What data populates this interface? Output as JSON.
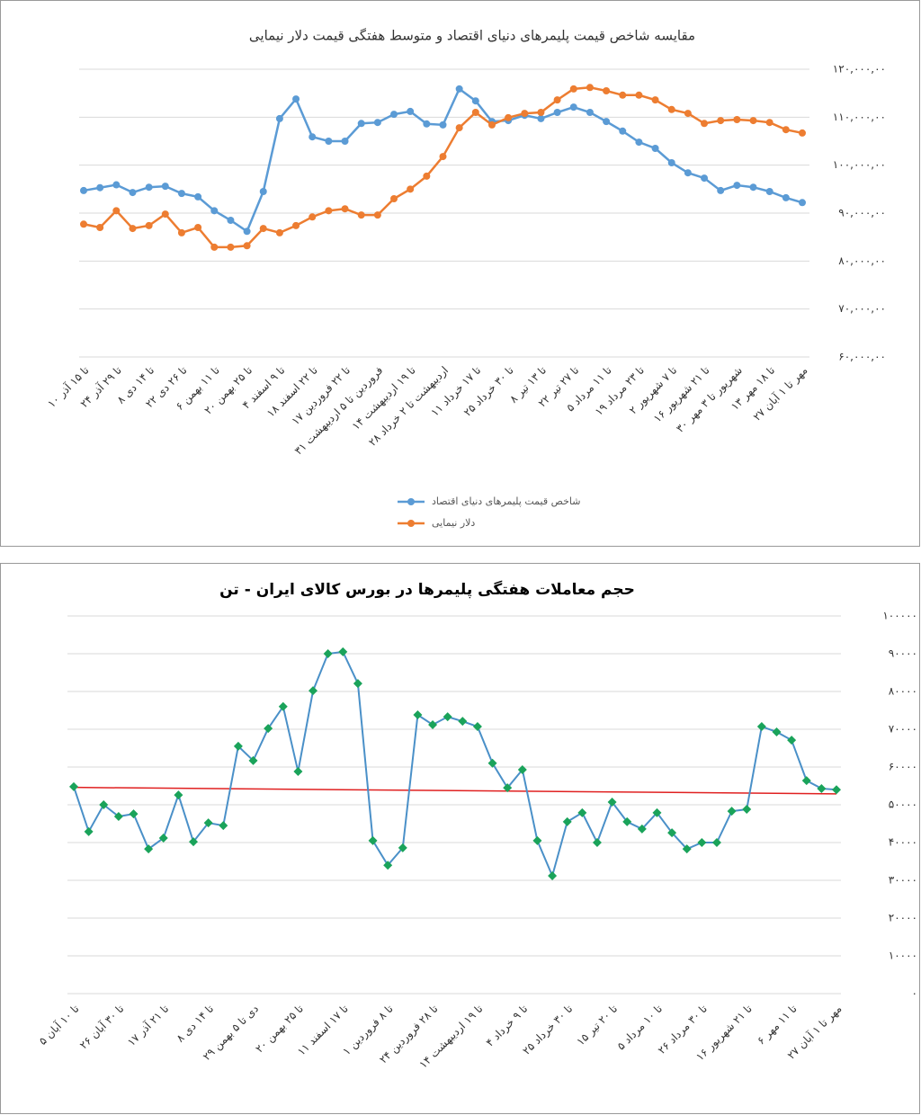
{
  "chart_data": [
    {
      "type": "line",
      "title": "مقایسه شاخص قیمت پلیمرهای دنیای اقتصاد و متوسط هفتگی قیمت دلار نیمایی",
      "categories": [
        "۱۰ تا ۱۵ آذر",
        null,
        "۲۴ تا ۲۹ آذر",
        null,
        "۸ تا ۱۴ دی",
        null,
        "۲۲ تا ۲۶ دی",
        null,
        "۶ تا ۱۱ بهمن",
        null,
        "۲۰ تا ۲۵ بهمن",
        null,
        "۴ تا ۹ اسفند",
        null,
        "۱۸ تا ۲۲ اسفند",
        null,
        "۱۷ تا ۲۲ فروردین",
        null,
        "۳۱ فروردین تا ۵ اردیبهشت",
        null,
        "۱۴ تا ۱۹ اردیبهشت",
        null,
        "۲۸ اردیبهشت تا ۲ خرداد",
        null,
        "۱۱ تا ۱۷ خرداد",
        null,
        "۲۵ تا ۳۰ خرداد",
        null,
        "۸ تا ۱۳ تیر",
        null,
        "۲۲ تا ۲۷ تیر",
        null,
        "۵ تا ۱۱ مرداد",
        null,
        "۱۹ تا ۲۳ مرداد",
        null,
        "۲ تا ۷ شهریور",
        null,
        "۱۶ تا ۲۱ شهریور",
        null,
        "۳۰ شهریور تا ۳ مهر",
        null,
        "۱۳ تا ۱۸ مهر",
        null,
        "۲۷ مهر تا ۱ آبان"
      ],
      "series": [
        {
          "name": "شاخص قیمت پلیمرهای دنیای اقتصاد",
          "color": "#5b9bd5",
          "marker": "circle",
          "values": [
            9470000,
            9530000,
            9590000,
            9430000,
            9540000,
            9560000,
            9410000,
            9340000,
            9050000,
            8850000,
            8620000,
            9450000,
            10970000,
            11380000,
            10590000,
            10500000,
            10500000,
            10870000,
            10890000,
            11060000,
            11120000,
            10860000,
            10840000,
            11590000,
            11340000,
            10910000,
            10930000,
            11040000,
            10970000,
            11100000,
            11210000,
            11100000,
            10910000,
            10710000,
            10480000,
            10350000,
            10050000,
            9840000,
            9730000,
            9470000,
            9580000,
            9540000,
            9450000,
            9320000,
            9220000
          ]
        },
        {
          "name": "دلار نیمایی",
          "color": "#ed7d31",
          "marker": "circle",
          "values": [
            8770000,
            8700000,
            9050000,
            8680000,
            8740000,
            8980000,
            8590000,
            8700000,
            8290000,
            8290000,
            8320000,
            8680000,
            8590000,
            8740000,
            8920000,
            9050000,
            9090000,
            8960000,
            8960000,
            9300000,
            9500000,
            9770000,
            10180000,
            10780000,
            11100000,
            10840000,
            10990000,
            11080000,
            11100000,
            11360000,
            11590000,
            11620000,
            11550000,
            11460000,
            11460000,
            11360000,
            11160000,
            11080000,
            10870000,
            10930000,
            10950000,
            10930000,
            10890000,
            10740000,
            10670000
          ]
        }
      ],
      "ylim": [
        6000000,
        12000000
      ],
      "yticks": [
        {
          "value": 6000000,
          "label": "۶۰,۰۰۰,۰۰"
        },
        {
          "value": 7000000,
          "label": "۷۰,۰۰۰,۰۰"
        },
        {
          "value": 8000000,
          "label": "۸۰,۰۰۰,۰۰"
        },
        {
          "value": 9000000,
          "label": "۹۰,۰۰۰,۰۰"
        },
        {
          "value": 10000000,
          "label": "۱۰۰,۰۰۰,۰۰"
        },
        {
          "value": 11000000,
          "label": "۱۱۰,۰۰۰,۰۰"
        },
        {
          "value": 12000000,
          "label": "۱۲۰,۰۰۰,۰۰"
        }
      ],
      "grid": true,
      "legend": "bottom"
    },
    {
      "type": "line",
      "title": "حجم معاملات هفتگی پلیمرها در بورس کالای ایران - تن",
      "categories": [
        "۵ تا ۱۰ آبان",
        null,
        null,
        "۲۶ تا ۳۰ آبان",
        null,
        null,
        "۱۷ تا ۲۱ آذر",
        null,
        null,
        "۸ تا ۱۴ دی",
        null,
        null,
        "۲۹ دی تا ۵ بهمن",
        null,
        null,
        "۲۰ تا ۲۵ بهمن",
        null,
        null,
        "۱۱ تا ۱۷ اسفند",
        null,
        null,
        "۱ تا ۸ فروردین",
        null,
        null,
        "۲۴ تا ۲۸ فروردین",
        null,
        null,
        "۱۴ تا ۱۹ اردیبهشت",
        null,
        null,
        "۴ تا ۹ خرداد",
        null,
        null,
        "۲۵ تا ۳۰ خرداد",
        null,
        null,
        "۱۵ تا ۲۰ تیر",
        null,
        null,
        "۵ تا ۱۰ مرداد",
        null,
        null,
        "۲۶ تا ۳۰ مرداد",
        null,
        null,
        "۱۶ تا ۲۱ شهریور",
        null,
        null,
        "۶ تا ۱۱ مهر",
        null,
        null,
        "۲۷ مهر تا ۱ آبان"
      ],
      "series": [
        {
          "color": "#4a90c8",
          "marker": "diamond",
          "marker_color": "#1aa35a",
          "values": [
            54800,
            42900,
            50000,
            46900,
            47600,
            38300,
            41200,
            52600,
            40200,
            45200,
            44500,
            65500,
            61700,
            70200,
            76000,
            58800,
            80200,
            90000,
            90500,
            82100,
            40500,
            34000,
            38600,
            73800,
            71200,
            73300,
            72100,
            70700,
            61000,
            54500,
            59300,
            40500,
            31200,
            45500,
            47900,
            40000,
            50700,
            45500,
            43600,
            47900,
            42600,
            38300,
            40000,
            40000,
            48300,
            48800,
            70700,
            69300,
            67100,
            56400,
            54300,
            54000
          ]
        }
      ],
      "trend": {
        "color": "#e02020",
        "values": [
          54600,
          52900
        ]
      },
      "ylim": [
        0,
        100000
      ],
      "yticks": [
        {
          "value": 0,
          "label": "۰"
        },
        {
          "value": 10000,
          "label": "۱۰۰۰۰"
        },
        {
          "value": 20000,
          "label": "۲۰۰۰۰"
        },
        {
          "value": 30000,
          "label": "۳۰۰۰۰"
        },
        {
          "value": 40000,
          "label": "۴۰۰۰۰"
        },
        {
          "value": 50000,
          "label": "۵۰۰۰۰"
        },
        {
          "value": 60000,
          "label": "۶۰۰۰۰"
        },
        {
          "value": 70000,
          "label": "۷۰۰۰۰"
        },
        {
          "value": 80000,
          "label": "۸۰۰۰۰"
        },
        {
          "value": 90000,
          "label": "۹۰۰۰۰"
        },
        {
          "value": 100000,
          "label": "۱۰۰۰۰۰"
        }
      ],
      "grid": true
    }
  ]
}
